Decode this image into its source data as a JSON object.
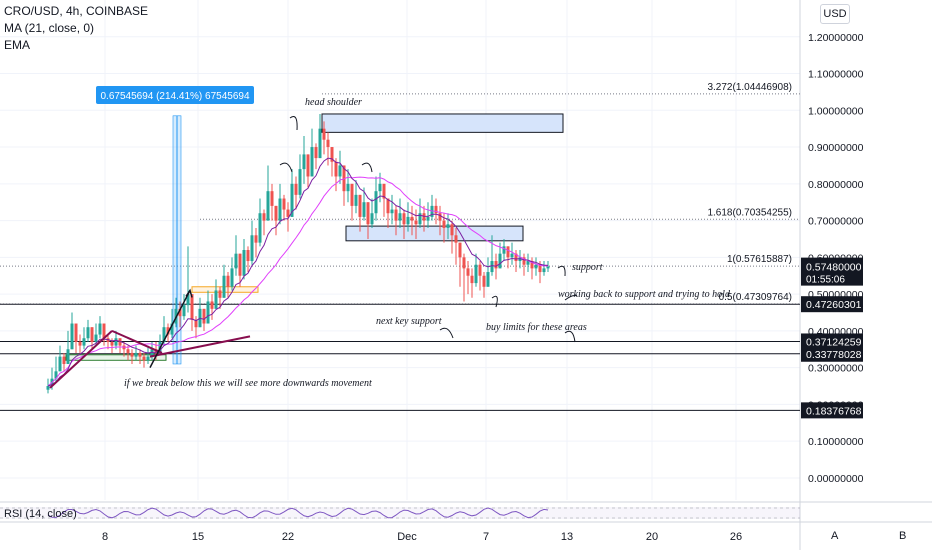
{
  "header": {
    "title": "CRO/USD, 4h, COINBASE",
    "ma": "MA (21, close, 0)",
    "ema": "EMA",
    "currency_button": "USD"
  },
  "rsi": {
    "label": "RSI (14, close)"
  },
  "bottom_buttons": {
    "a": "A",
    "b": "B"
  },
  "colors": {
    "bull": "#26a69a",
    "bear": "#ef5350",
    "ma": "#e040fb",
    "ema": "#7b1fa2",
    "label_blue": "#2196f3",
    "annotation": "#131722"
  },
  "chart_data": {
    "type": "candlestick",
    "title": "CRO/USD, 4h, COINBASE",
    "ylim": [
      -0.06,
      1.3
    ],
    "x_ticks": [
      "8",
      "15",
      "22",
      "Dec",
      "7",
      "13",
      "20",
      "26"
    ],
    "y_ticks": [
      "1.20000000",
      "1.10000000",
      "1.00000000",
      "0.90000000",
      "0.80000000",
      "0.70000000",
      "0.60000000",
      "0.50000000",
      "0.40000000",
      "0.30000000",
      "0.20000000",
      "0.10000000",
      "0.00000000"
    ],
    "y_tick_values": [
      1.2,
      1.1,
      1.0,
      0.9,
      0.8,
      0.7,
      0.6,
      0.5,
      0.4,
      0.3,
      0.2,
      0.1,
      0.0
    ],
    "price_label": {
      "value": "0.57480000",
      "countdown": "01:55:06"
    },
    "horizontal_levels": [
      {
        "value": 0.4726,
        "label": "0.47260301"
      },
      {
        "value": 0.3712,
        "label": "0.37124259"
      },
      {
        "value": 0.3378,
        "label": "0.33778028"
      },
      {
        "value": 0.1838,
        "label": "0.18376768"
      }
    ],
    "fib_levels": [
      {
        "value": 1.0445,
        "label": "3.272(1.04446908)"
      },
      {
        "value": 0.7035,
        "label": "1.618(0.70354255)"
      },
      {
        "value": 0.5762,
        "label": "1(0.57615887)"
      },
      {
        "value": 0.4731,
        "label": "0.5(0.47309764)"
      }
    ],
    "measure_label": "0.67545694 (214.41%) 67545694",
    "annotations": [
      "head shoulder",
      "support",
      "working back to support and trying to hold",
      "next key support",
      "buy limits for these areas",
      "if we break below this we will see more downwards movement"
    ],
    "close": [
      0.25,
      0.27,
      0.29,
      0.33,
      0.31,
      0.35,
      0.42,
      0.37,
      0.36,
      0.38,
      0.41,
      0.37,
      0.39,
      0.42,
      0.38,
      0.37,
      0.36,
      0.38,
      0.36,
      0.35,
      0.34,
      0.33,
      0.34,
      0.33,
      0.32,
      0.33,
      0.35,
      0.34,
      0.37,
      0.41,
      0.39,
      0.42,
      0.46,
      0.44,
      0.47,
      0.5,
      0.43,
      0.41,
      0.46,
      0.42,
      0.48,
      0.46,
      0.51,
      0.49,
      0.55,
      0.52,
      0.57,
      0.61,
      0.55,
      0.62,
      0.59,
      0.66,
      0.64,
      0.72,
      0.7,
      0.78,
      0.74,
      0.7,
      0.76,
      0.73,
      0.71,
      0.8,
      0.77,
      0.84,
      0.88,
      0.82,
      0.9,
      0.87,
      0.95,
      0.92,
      0.9,
      0.86,
      0.82,
      0.85,
      0.78,
      0.8,
      0.74,
      0.77,
      0.71,
      0.75,
      0.69,
      0.72,
      0.78,
      0.8,
      0.76,
      0.72,
      0.73,
      0.7,
      0.72,
      0.69,
      0.71,
      0.7,
      0.69,
      0.72,
      0.7,
      0.71,
      0.74,
      0.72,
      0.7,
      0.68,
      0.69,
      0.66,
      0.64,
      0.6,
      0.57,
      0.55,
      0.53,
      0.58,
      0.55,
      0.52,
      0.56,
      0.59,
      0.57,
      0.61,
      0.63,
      0.6,
      0.61,
      0.59,
      0.6,
      0.58,
      0.59,
      0.57,
      0.58,
      0.56,
      0.57,
      0.575
    ],
    "high": [
      0.27,
      0.3,
      0.33,
      0.36,
      0.34,
      0.4,
      0.45,
      0.4,
      0.39,
      0.41,
      0.43,
      0.4,
      0.42,
      0.44,
      0.41,
      0.39,
      0.38,
      0.4,
      0.38,
      0.37,
      0.36,
      0.35,
      0.36,
      0.35,
      0.34,
      0.36,
      0.37,
      0.37,
      0.39,
      0.44,
      0.42,
      0.46,
      0.49,
      0.48,
      0.5,
      0.63,
      0.46,
      0.44,
      0.49,
      0.46,
      0.51,
      0.5,
      0.54,
      0.52,
      0.58,
      0.56,
      0.6,
      0.66,
      0.58,
      0.65,
      0.63,
      0.7,
      0.68,
      0.76,
      0.73,
      0.85,
      0.8,
      0.74,
      0.8,
      0.77,
      0.75,
      0.84,
      0.82,
      0.88,
      0.93,
      0.88,
      0.95,
      0.91,
      0.99,
      0.97,
      0.94,
      0.9,
      0.87,
      0.89,
      0.84,
      0.84,
      0.79,
      0.81,
      0.76,
      0.79,
      0.74,
      0.76,
      0.82,
      0.83,
      0.8,
      0.76,
      0.77,
      0.74,
      0.76,
      0.73,
      0.75,
      0.74,
      0.73,
      0.76,
      0.74,
      0.75,
      0.77,
      0.76,
      0.74,
      0.72,
      0.72,
      0.7,
      0.68,
      0.64,
      0.61,
      0.59,
      0.57,
      0.61,
      0.59,
      0.56,
      0.6,
      0.66,
      0.61,
      0.64,
      0.65,
      0.63,
      0.64,
      0.62,
      0.62,
      0.61,
      0.61,
      0.6,
      0.6,
      0.59,
      0.59,
      0.59
    ],
    "low": [
      0.23,
      0.24,
      0.26,
      0.29,
      0.29,
      0.31,
      0.36,
      0.34,
      0.34,
      0.35,
      0.37,
      0.35,
      0.36,
      0.38,
      0.36,
      0.35,
      0.34,
      0.35,
      0.34,
      0.33,
      0.32,
      0.31,
      0.32,
      0.31,
      0.3,
      0.31,
      0.32,
      0.32,
      0.34,
      0.36,
      0.37,
      0.38,
      0.41,
      0.41,
      0.43,
      0.45,
      0.4,
      0.38,
      0.41,
      0.4,
      0.42,
      0.43,
      0.46,
      0.46,
      0.49,
      0.49,
      0.51,
      0.55,
      0.52,
      0.54,
      0.56,
      0.58,
      0.6,
      0.63,
      0.66,
      0.7,
      0.7,
      0.66,
      0.69,
      0.7,
      0.67,
      0.71,
      0.73,
      0.76,
      0.8,
      0.79,
      0.82,
      0.84,
      0.87,
      0.88,
      0.85,
      0.82,
      0.78,
      0.8,
      0.74,
      0.75,
      0.7,
      0.72,
      0.67,
      0.7,
      0.65,
      0.68,
      0.7,
      0.75,
      0.71,
      0.68,
      0.69,
      0.66,
      0.68,
      0.65,
      0.67,
      0.66,
      0.65,
      0.68,
      0.67,
      0.68,
      0.7,
      0.69,
      0.66,
      0.64,
      0.65,
      0.61,
      0.58,
      0.52,
      0.48,
      0.5,
      0.49,
      0.52,
      0.51,
      0.49,
      0.52,
      0.55,
      0.54,
      0.57,
      0.59,
      0.57,
      0.58,
      0.56,
      0.57,
      0.55,
      0.56,
      0.54,
      0.55,
      0.53,
      0.55,
      0.56
    ]
  }
}
